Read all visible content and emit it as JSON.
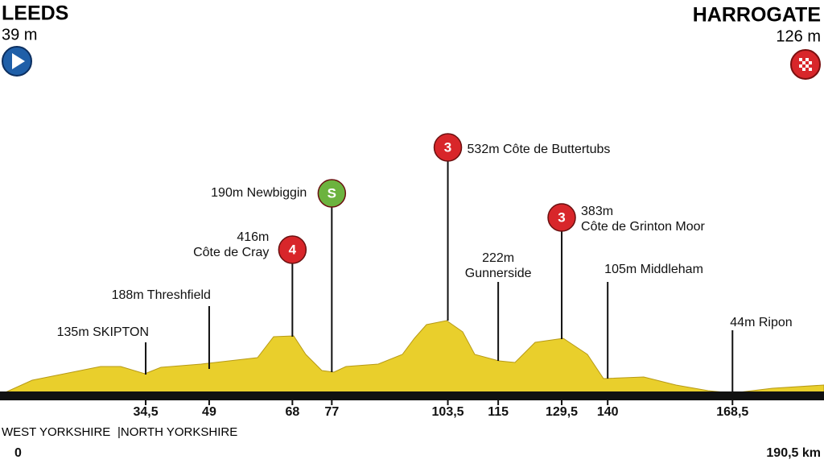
{
  "start": {
    "name": "LEEDS",
    "altitude": "39 m"
  },
  "finish": {
    "name": "HARROGATE",
    "altitude": "126 m"
  },
  "distance": {
    "start": "0",
    "end": "190,5 km",
    "total": 190.5
  },
  "regions": [
    "WEST YORKSHIRE",
    "|NORTH YORKSHIRE"
  ],
  "waypoints": [
    {
      "km": {
        "value": 34.5,
        "label": "34,5"
      },
      "lines": [
        "135m SKIPTON"
      ]
    },
    {
      "km": {
        "value": 49,
        "label": "49"
      },
      "lines": [
        "188m Threshfield"
      ]
    },
    {
      "km": {
        "value": 68,
        "label": "68"
      },
      "lines": [
        "416m",
        "Côte de Cray"
      ],
      "category": "4"
    },
    {
      "km": {
        "value": 77,
        "label": "77"
      },
      "lines": [
        "190m Newbiggin"
      ],
      "category": "S"
    },
    {
      "km": {
        "value": 103.5,
        "label": "103,5"
      },
      "lines": [
        "532m  Côte de Buttertubs"
      ],
      "category": "3"
    },
    {
      "km": {
        "value": 115,
        "label": "115"
      },
      "lines": [
        "222m",
        "Gunnerside"
      ]
    },
    {
      "km": {
        "value": 129.5,
        "label": "129,5"
      },
      "lines": [
        "383m",
        "Côte de Grinton Moor"
      ],
      "category": "3"
    },
    {
      "km": {
        "value": 140,
        "label": "140"
      },
      "lines": [
        "105m  Middleham"
      ]
    },
    {
      "km": {
        "value": 168.5,
        "label": "168,5"
      },
      "lines": [
        "44m Ripon"
      ]
    }
  ]
}
